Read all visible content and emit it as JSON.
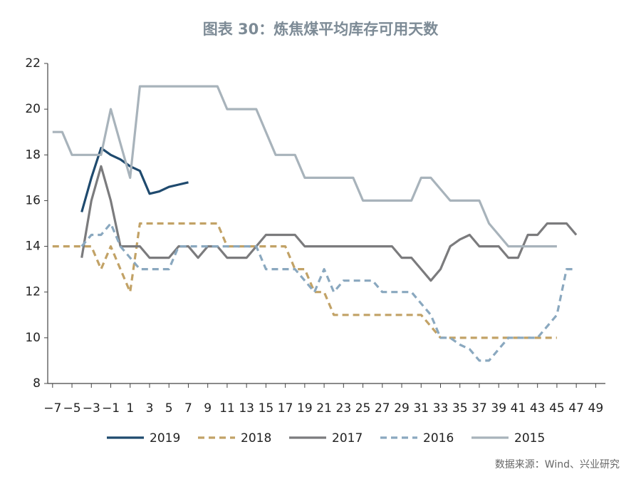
{
  "chart_data": {
    "type": "line",
    "title": "图表 30：炼焦煤平均库存可用天数",
    "source": "数据来源：Wind、兴业研究",
    "x": [
      -7,
      -6,
      -5,
      -4,
      -3,
      -2,
      -1,
      0,
      1,
      2,
      3,
      4,
      5,
      6,
      7,
      8,
      9,
      10,
      11,
      12,
      13,
      14,
      15,
      16,
      17,
      18,
      19,
      20,
      21,
      22,
      23,
      24,
      25,
      26,
      27,
      28,
      29,
      30,
      31,
      32,
      33,
      34,
      35,
      36,
      37,
      38,
      39,
      40,
      41,
      42,
      43,
      44,
      45,
      46,
      47
    ],
    "xlim": [
      -7.5,
      50
    ],
    "xticks": [
      {
        "value": -7,
        "label": "−7"
      },
      {
        "value": -5,
        "label": "−5"
      },
      {
        "value": -3,
        "label": "−3"
      },
      {
        "value": -1,
        "label": "−1"
      },
      1,
      3,
      5,
      7,
      9,
      11,
      13,
      15,
      17,
      19,
      21,
      23,
      25,
      27,
      29,
      31,
      33,
      35,
      37,
      39,
      41,
      43,
      45,
      47,
      49
    ],
    "ylim": [
      8,
      22
    ],
    "yticks": [
      8,
      10,
      12,
      14,
      16,
      18,
      20,
      22
    ],
    "series": [
      {
        "name": "2019",
        "color": "#1f4a6e",
        "dashed": false,
        "values": [
          null,
          null,
          null,
          15.5,
          17,
          18.3,
          18,
          17.8,
          17.5,
          17.3,
          16.3,
          16.4,
          16.6,
          16.7,
          16.8,
          null,
          null,
          null,
          null,
          null,
          null,
          null,
          null,
          null,
          null,
          null,
          null,
          null,
          null,
          null,
          null,
          null,
          null,
          null,
          null,
          null,
          null,
          null,
          null,
          null,
          null,
          null,
          null,
          null,
          null,
          null,
          null,
          null,
          null,
          null,
          null,
          null,
          null,
          null,
          null
        ]
      },
      {
        "name": "2018",
        "color": "#c2a266",
        "dashed": true,
        "values": [
          14,
          14,
          14,
          14,
          14,
          13,
          14,
          13,
          12,
          15,
          15,
          15,
          15,
          15,
          15,
          15,
          15,
          15,
          14,
          14,
          14,
          14,
          14,
          14,
          14,
          13,
          13,
          12,
          12,
          11,
          11,
          11,
          11,
          11,
          11,
          11,
          11,
          11,
          11,
          10.5,
          10,
          10,
          10,
          10,
          10,
          10,
          10,
          10,
          10,
          10,
          10,
          10,
          10,
          null,
          null
        ]
      },
      {
        "name": "2017",
        "color": "#7b7b7d",
        "dashed": false,
        "values": [
          null,
          null,
          null,
          13.5,
          16,
          17.5,
          16,
          14,
          14,
          14,
          13.5,
          13.5,
          13.5,
          14,
          14,
          13.5,
          14,
          14,
          13.5,
          13.5,
          13.5,
          14,
          14.5,
          14.5,
          14.5,
          14.5,
          14,
          14,
          14,
          14,
          14,
          14,
          14,
          14,
          14,
          14,
          13.5,
          13.5,
          13,
          12.5,
          13,
          14,
          14.3,
          14.5,
          14,
          14,
          14,
          13.5,
          13.5,
          14.5,
          14.5,
          15,
          15,
          15,
          14.5
        ]
      },
      {
        "name": "2016",
        "color": "#8aa8bf",
        "dashed": true,
        "values": [
          null,
          null,
          null,
          14,
          14.5,
          14.5,
          15,
          14,
          13.5,
          13,
          13,
          13,
          13,
          14,
          14,
          14,
          14,
          14,
          14,
          14,
          14,
          14,
          13,
          13,
          13,
          13,
          12.5,
          12,
          13,
          12,
          12.5,
          12.5,
          12.5,
          12.5,
          12,
          12,
          12,
          12,
          11.5,
          11,
          10,
          10,
          9.7,
          9.5,
          9,
          9,
          9.5,
          10,
          10,
          10,
          10,
          10.5,
          11,
          13,
          13
        ]
      },
      {
        "name": "2015",
        "color": "#a8b3bb",
        "dashed": false,
        "values": [
          19,
          19,
          18,
          18,
          18,
          18,
          20,
          18.5,
          17,
          21,
          21,
          21,
          21,
          21,
          21,
          21,
          21,
          21,
          20,
          20,
          20,
          20,
          19,
          18,
          18,
          18,
          17,
          17,
          17,
          17,
          17,
          17,
          16,
          16,
          16,
          16,
          16,
          16,
          17,
          17,
          16.5,
          16,
          16,
          16,
          16,
          15,
          14.5,
          14,
          14,
          14,
          14,
          14,
          14,
          null,
          null
        ]
      }
    ]
  }
}
